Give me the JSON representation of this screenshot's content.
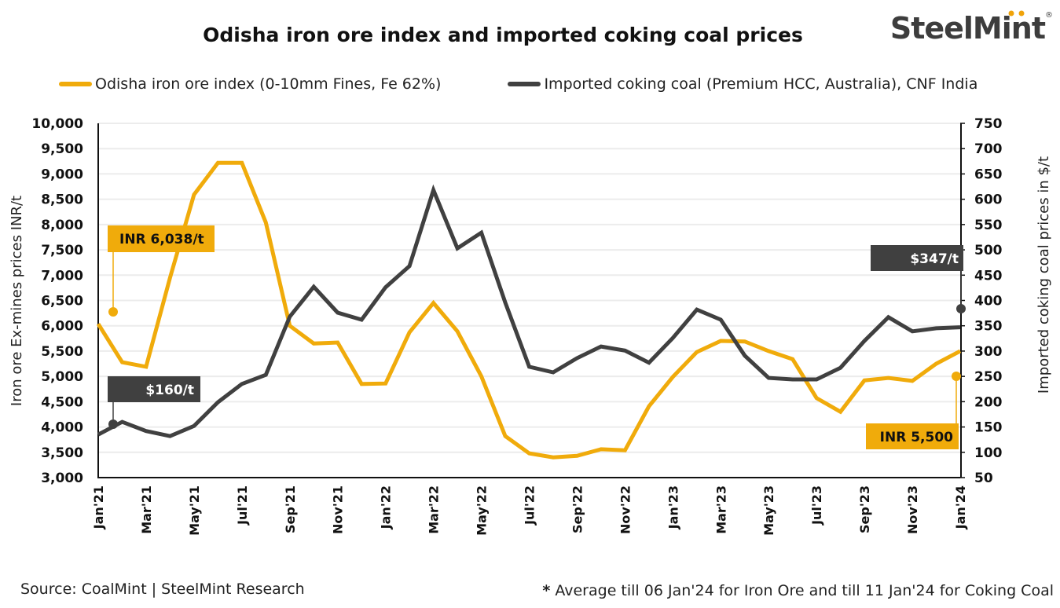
{
  "logo": {
    "text": "SteelMint",
    "mark": "®",
    "accent_color": "#F0A30A"
  },
  "chart_data": {
    "type": "line",
    "title": "Odisha iron ore index and imported coking coal prices",
    "categories": [
      "Jan'21",
      "Feb'21",
      "Mar'21",
      "Apr'21",
      "May'21",
      "Jun'21",
      "Jul'21",
      "Aug'21",
      "Sep'21",
      "Oct'21",
      "Nov'21",
      "Dec'21",
      "Jan'22",
      "Feb'22",
      "Mar'22",
      "Apr'22",
      "May'22",
      "Jun'22",
      "Jul'22",
      "Aug'22",
      "Sep'22",
      "Oct'22",
      "Nov'22",
      "Dec'22",
      "Jan'23",
      "Feb'23",
      "Mar'23",
      "Apr'23",
      "May'23",
      "Jun'23",
      "Jul'23",
      "Aug'23",
      "Sep'23",
      "Oct'23",
      "Nov'23",
      "Dec'23",
      "Jan'24"
    ],
    "x_tick_labels": [
      "Jan'21",
      "Mar'21",
      "May'21",
      "Jul'21",
      "Sep'21",
      "Nov'21",
      "Jan'22",
      "Mar'22",
      "May'22",
      "Jul'22",
      "Sep'22",
      "Nov'22",
      "Jan'23",
      "Mar'23",
      "May'23",
      "Jul'23",
      "Sep'23",
      "Nov'23",
      "Jan'24"
    ],
    "series": [
      {
        "name": "Odisha iron ore index (0-10mm Fines, Fe 62%)",
        "axis": "left",
        "color": "#F0AB0B",
        "values": [
          6038,
          5280,
          5190,
          6950,
          8590,
          9220,
          9220,
          8040,
          6000,
          5650,
          5670,
          4850,
          4860,
          5870,
          6450,
          5890,
          5000,
          3820,
          3480,
          3400,
          3430,
          3560,
          3540,
          4410,
          4990,
          5480,
          5700,
          5690,
          5500,
          5340,
          4570,
          4300,
          4920,
          4970,
          4910,
          5250,
          5500
        ]
      },
      {
        "name": "Imported coking coal (Premium HCC, Australia), CNF India",
        "axis": "right",
        "color": "#404040",
        "values": [
          135,
          160,
          142,
          132,
          152,
          199,
          235,
          253,
          368,
          427,
          376,
          362,
          426,
          468,
          618,
          503,
          534,
          396,
          269,
          258,
          286,
          309,
          301,
          277,
          326,
          382,
          362,
          291,
          247,
          244,
          244,
          267,
          320,
          367,
          339,
          345,
          347
        ]
      }
    ],
    "ylabel_left": "Iron ore Ex-mines prices INR/t",
    "ylabel_right": "Imported coking coal prices in $/t",
    "ylim_left": [
      3000,
      10000
    ],
    "ylim_right": [
      50,
      750
    ],
    "yticks_left": [
      "3,000",
      "3,500",
      "4,000",
      "4,500",
      "5,000",
      "5,500",
      "6,000",
      "6,500",
      "7,000",
      "7,500",
      "8,000",
      "8,500",
      "9,000",
      "9,500",
      "10,000"
    ],
    "yticks_right": [
      "50",
      "100",
      "150",
      "200",
      "250",
      "300",
      "350",
      "400",
      "450",
      "500",
      "550",
      "600",
      "650",
      "700",
      "750"
    ],
    "grid": true,
    "legend_position": "top",
    "annotations": [
      {
        "label": "INR 6,038/t",
        "series": 0,
        "point": "Jan'21"
      },
      {
        "label": "$160/t",
        "series": 1,
        "point": "Feb'21"
      },
      {
        "label": "$347/t",
        "series": 1,
        "point": "Jan'24"
      },
      {
        "label": "INR 5,500",
        "series": 0,
        "point": "Jan'24"
      }
    ]
  },
  "footer": {
    "source": "Source: CoalMint | SteelMint Research",
    "note_mark": "*",
    "note": "Average till 06 Jan'24 for Iron Ore and till 11 Jan'24 for Coking Coal"
  }
}
